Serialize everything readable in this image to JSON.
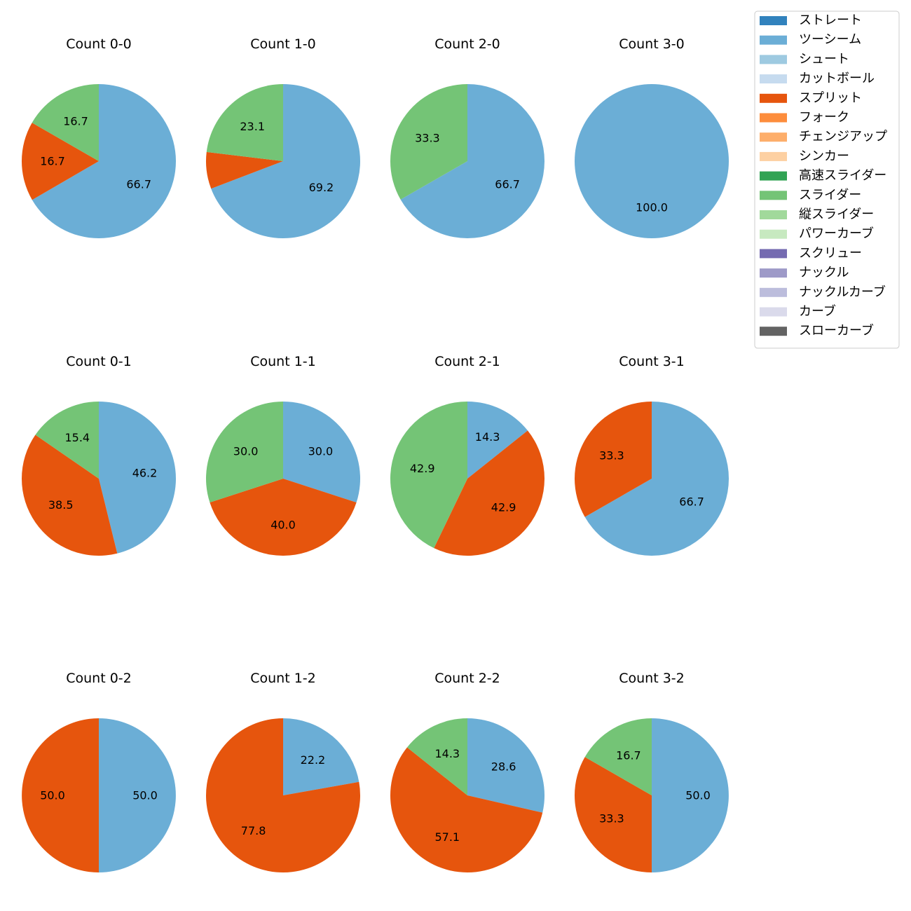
{
  "colors": {
    "ストレート": "#3182bd",
    "ツーシーム": "#6baed6",
    "シュート": "#9ecae1",
    "カットボール": "#c6dbef",
    "スプリット": "#e6550d",
    "フォーク": "#fd8d3c",
    "チェンジアップ": "#fdae6b",
    "シンカー": "#fdd0a2",
    "高速スライダー": "#31a354",
    "スライダー": "#74c476",
    "縦スライダー": "#a1d99b",
    "パワーカーブ": "#c7e9c0",
    "スクリュー": "#756bb1",
    "ナックル": "#9e9ac8",
    "ナックルカーブ": "#bcbddc",
    "カーブ": "#dadaeb",
    "スローカーブ": "#636363"
  },
  "legend": [
    "ストレート",
    "ツーシーム",
    "シュート",
    "カットボール",
    "スプリット",
    "フォーク",
    "チェンジアップ",
    "シンカー",
    "高速スライダー",
    "スライダー",
    "縦スライダー",
    "パワーカーブ",
    "スクリュー",
    "ナックル",
    "ナックルカーブ",
    "カーブ",
    "スローカーブ"
  ],
  "chart_data": [
    {
      "type": "pie",
      "title": "Count 0-0",
      "slices": [
        {
          "label": "ツーシーム",
          "value": 66.7
        },
        {
          "label": "スプリット",
          "value": 16.7
        },
        {
          "label": "スライダー",
          "value": 16.7
        }
      ]
    },
    {
      "type": "pie",
      "title": "Count 1-0",
      "slices": [
        {
          "label": "ツーシーム",
          "value": 69.2
        },
        {
          "label": "スプリット",
          "value": 7.7,
          "hide_label": true
        },
        {
          "label": "スライダー",
          "value": 23.1
        }
      ]
    },
    {
      "type": "pie",
      "title": "Count 2-0",
      "slices": [
        {
          "label": "ツーシーム",
          "value": 66.7
        },
        {
          "label": "スライダー",
          "value": 33.3
        }
      ]
    },
    {
      "type": "pie",
      "title": "Count 3-0",
      "slices": [
        {
          "label": "ツーシーム",
          "value": 100.0
        }
      ]
    },
    {
      "type": "pie",
      "title": "Count 0-1",
      "slices": [
        {
          "label": "ツーシーム",
          "value": 46.2
        },
        {
          "label": "スプリット",
          "value": 38.5
        },
        {
          "label": "スライダー",
          "value": 15.4
        }
      ]
    },
    {
      "type": "pie",
      "title": "Count 1-1",
      "slices": [
        {
          "label": "ツーシーム",
          "value": 30.0
        },
        {
          "label": "スプリット",
          "value": 40.0
        },
        {
          "label": "スライダー",
          "value": 30.0
        }
      ]
    },
    {
      "type": "pie",
      "title": "Count 2-1",
      "slices": [
        {
          "label": "ツーシーム",
          "value": 14.3
        },
        {
          "label": "スプリット",
          "value": 42.9
        },
        {
          "label": "スライダー",
          "value": 42.9
        }
      ]
    },
    {
      "type": "pie",
      "title": "Count 3-1",
      "slices": [
        {
          "label": "ツーシーム",
          "value": 66.7
        },
        {
          "label": "スプリット",
          "value": 33.3
        }
      ]
    },
    {
      "type": "pie",
      "title": "Count 0-2",
      "slices": [
        {
          "label": "ツーシーム",
          "value": 50.0
        },
        {
          "label": "スプリット",
          "value": 50.0
        }
      ]
    },
    {
      "type": "pie",
      "title": "Count 1-2",
      "slices": [
        {
          "label": "ツーシーム",
          "value": 22.2
        },
        {
          "label": "スプリット",
          "value": 77.8
        }
      ]
    },
    {
      "type": "pie",
      "title": "Count 2-2",
      "slices": [
        {
          "label": "ツーシーム",
          "value": 28.6
        },
        {
          "label": "スプリット",
          "value": 57.1
        },
        {
          "label": "スライダー",
          "value": 14.3
        }
      ]
    },
    {
      "type": "pie",
      "title": "Count 3-2",
      "slices": [
        {
          "label": "ツーシーム",
          "value": 50.0
        },
        {
          "label": "スプリット",
          "value": 33.3
        },
        {
          "label": "スライダー",
          "value": 16.7
        }
      ]
    }
  ]
}
